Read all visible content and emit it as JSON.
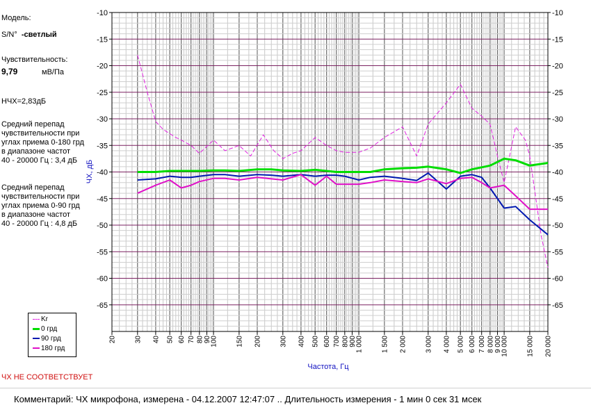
{
  "info": {
    "model_label": "Модель:",
    "serial_label": "S/N°",
    "serial_value": "-светлый",
    "sensitivity_label": "Чувствительность:",
    "sensitivity_value": "9,79",
    "sensitivity_unit": "мВ/Па",
    "nchx": "НЧХ=2,83дБ",
    "diff180": [
      "Средний перепад",
      "чувствительности при",
      "углах приема 0-180 грд",
      "в диапазоне частот",
      "40 - 20000 Гц : 3,4 дБ"
    ],
    "diff90": [
      "Средний перепад",
      "чувствительности при",
      "углах приема 0-90 грд",
      "в диапазоне частот",
      "40 - 20000 Гц : 4,8 дБ"
    ]
  },
  "status": "ЧХ НЕ СООТВЕТСТВУЕТ",
  "comment": "Комментарий: ЧХ микрофона, измерена - 04.12.2007 12:47:07 ..  Длительность измерения - 1 мин 0 сек 31 мсек",
  "chart_data": {
    "type": "line",
    "xscale": "log",
    "xlabel": "Частота, Гц",
    "ylabel": "ЧХ, дБ",
    "xlim": [
      20,
      20000
    ],
    "ylim": [
      -70,
      -10
    ],
    "grid": true,
    "x_ticks": [
      20,
      30,
      40,
      50,
      60,
      70,
      80,
      90,
      100,
      150,
      200,
      300,
      400,
      500,
      600,
      700,
      800,
      900,
      1000,
      1500,
      2000,
      3000,
      4000,
      5000,
      6000,
      7000,
      8000,
      9000,
      10000,
      15000,
      20000
    ],
    "x_tick_labels": [
      "20",
      "30",
      "40",
      "50",
      "60",
      "70",
      "80",
      "90",
      "100",
      "150",
      "200",
      "300",
      "400",
      "500",
      "600",
      "700",
      "800",
      "900",
      "1 000",
      "1 500",
      "2 000",
      "3 000",
      "4 000",
      "5 000",
      "6 000",
      "7 000",
      "8 000",
      "9 000",
      "10 000",
      "15 000",
      "20 000"
    ],
    "y_ticks": [
      -10,
      -15,
      -20,
      -25,
      -30,
      -35,
      -40,
      -45,
      -50,
      -55,
      -60,
      -65
    ],
    "legend_position": "bottom-left",
    "series": [
      {
        "name": "Kr",
        "color": "#e020e0",
        "dashed": true,
        "x": [
          30,
          35,
          40,
          45,
          55,
          60,
          70,
          80,
          100,
          120,
          150,
          180,
          220,
          260,
          300,
          350,
          400,
          500,
          600,
          700,
          800,
          900,
          1000,
          1200,
          1500,
          2000,
          2500,
          3000,
          4000,
          5000,
          6000,
          7000,
          8000,
          9000,
          10000,
          12000,
          14000,
          15000,
          18000,
          20000
        ],
        "values": [
          -18,
          -25,
          -30.5,
          -32,
          -33.5,
          -34,
          -35,
          -36.5,
          -34,
          -36,
          -35,
          -37,
          -33,
          -36,
          -37.5,
          -36.5,
          -36,
          -33.5,
          -35,
          -36,
          -36.3,
          -36.3,
          -36.3,
          -35.5,
          -33.5,
          -31.5,
          -37,
          -31,
          -27,
          -23.5,
          -28,
          -29.5,
          -31,
          -37,
          -42,
          -31.5,
          -34,
          -37,
          -52,
          -58
        ]
      },
      {
        "name": "0 грд",
        "color": "#00dd00",
        "dashed": false,
        "x": [
          30,
          40,
          50,
          60,
          70,
          80,
          100,
          120,
          150,
          200,
          250,
          300,
          400,
          500,
          600,
          700,
          800,
          1000,
          1200,
          1500,
          2000,
          2500,
          3000,
          4000,
          5000,
          6000,
          8000,
          10000,
          12000,
          15000,
          20000
        ],
        "values": [
          -40,
          -40,
          -39.8,
          -39.8,
          -39.8,
          -39.8,
          -39.7,
          -39.7,
          -39.8,
          -39.5,
          -39.5,
          -39.7,
          -39.8,
          -39.6,
          -39.8,
          -40,
          -40,
          -40,
          -40,
          -39.5,
          -39.3,
          -39.2,
          -39,
          -39.5,
          -40.2,
          -39.5,
          -38.8,
          -37.5,
          -37.8,
          -38.8,
          -38.3
        ]
      },
      {
        "name": "90 грд",
        "color": "#0018b0",
        "dashed": false,
        "x": [
          30,
          40,
          50,
          60,
          70,
          80,
          100,
          120,
          150,
          200,
          250,
          300,
          400,
          500,
          600,
          700,
          800,
          1000,
          1200,
          1500,
          2000,
          2500,
          3000,
          4000,
          5000,
          6000,
          7000,
          8000,
          10000,
          12000,
          15000,
          20000
        ],
        "values": [
          -41.5,
          -41.3,
          -40.8,
          -41,
          -41,
          -40.8,
          -40.5,
          -40.5,
          -40.8,
          -40.5,
          -40.6,
          -40.8,
          -40.5,
          -40.8,
          -40.6,
          -40.6,
          -40.8,
          -41.5,
          -41,
          -40.8,
          -41.2,
          -41.6,
          -40.2,
          -43.2,
          -40.8,
          -40.5,
          -41,
          -43,
          -46.8,
          -46.5,
          -49,
          -51.8
        ]
      },
      {
        "name": "180 грд",
        "color": "#e010c8",
        "dashed": false,
        "x": [
          30,
          40,
          50,
          60,
          70,
          80,
          100,
          120,
          150,
          200,
          250,
          300,
          400,
          500,
          600,
          700,
          800,
          1000,
          1200,
          1500,
          2000,
          2500,
          3000,
          4000,
          5000,
          6000,
          7000,
          8000,
          10000,
          12000,
          15000,
          20000
        ],
        "values": [
          -44,
          -42.5,
          -41.5,
          -43,
          -42.5,
          -41.8,
          -41.2,
          -41.2,
          -41.5,
          -41,
          -41.3,
          -41.5,
          -40.5,
          -42.5,
          -40.8,
          -42.3,
          -42.3,
          -42.3,
          -42,
          -41.5,
          -41.8,
          -42,
          -41.3,
          -42.2,
          -41.2,
          -41,
          -42,
          -43,
          -42.5,
          -44.5,
          -47,
          -47
        ]
      }
    ]
  }
}
